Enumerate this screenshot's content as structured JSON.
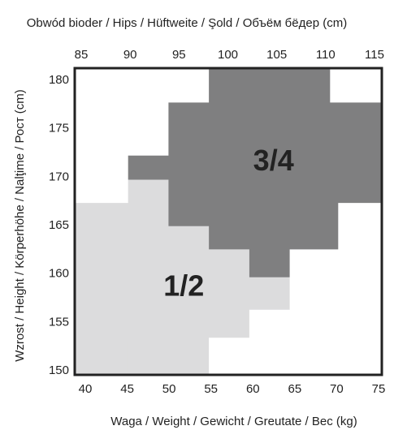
{
  "chart_data": {
    "type": "heatmap",
    "title_top": "Obwód bioder / Hips / Hüftweite / Şold / Объём бёдер (cm)",
    "xlabel": "Waga / Weight / Gewicht / Greutate / Вес (kg)",
    "ylabel": "Wzrost / Height / Körperhöhe / Nalţime / Рост (cm)",
    "x_ticks": [
      "40",
      "45",
      "50",
      "55",
      "60",
      "65",
      "70",
      "75"
    ],
    "x_ticks_top": [
      "85",
      "90",
      "95",
      "100",
      "105",
      "110",
      "115"
    ],
    "y_ticks": [
      "180",
      "175",
      "170",
      "165",
      "160",
      "155",
      "150"
    ],
    "xlim": [
      38,
      76
    ],
    "ylim": [
      149,
      182
    ],
    "colors": {
      "size_1_2": "#dcdcdd",
      "size_3_4": "#7f7f80",
      "frame": "#222222"
    },
    "regions": [
      {
        "label": "1/2",
        "color": "size_1_2",
        "label_at": [
          51.5,
          157.5
        ],
        "polygon": [
          [
            38,
            149
          ],
          [
            38,
            167.5
          ],
          [
            44.6,
            167.5
          ],
          [
            44.6,
            170
          ],
          [
            49.6,
            170
          ],
          [
            49.6,
            165
          ],
          [
            54.6,
            165
          ],
          [
            54.6,
            162.5
          ],
          [
            59.6,
            162.5
          ],
          [
            59.6,
            159.5
          ],
          [
            64.6,
            159.5
          ],
          [
            64.6,
            156
          ],
          [
            59.6,
            156
          ],
          [
            59.6,
            153
          ],
          [
            54.6,
            153
          ],
          [
            54.6,
            149
          ]
        ]
      },
      {
        "label": "3/4",
        "color": "size_3_4",
        "label_at": [
          62.6,
          171
        ],
        "polygon": [
          [
            44.6,
            170
          ],
          [
            44.6,
            172.6
          ],
          [
            49.6,
            172.6
          ],
          [
            49.6,
            178.3
          ],
          [
            54.6,
            178.3
          ],
          [
            54.6,
            182
          ],
          [
            69.6,
            182
          ],
          [
            69.6,
            178.3
          ],
          [
            76,
            178.3
          ],
          [
            76,
            167.5
          ],
          [
            70.6,
            167.5
          ],
          [
            70.6,
            162.5
          ],
          [
            64.6,
            162.5
          ],
          [
            64.6,
            159.5
          ],
          [
            59.6,
            159.5
          ],
          [
            59.6,
            162.5
          ],
          [
            54.6,
            162.5
          ],
          [
            54.6,
            165
          ],
          [
            49.6,
            165
          ],
          [
            49.6,
            170
          ]
        ]
      },
      {
        "label": "",
        "color": "size_1_2",
        "label_at": null,
        "polygon": [
          [
            38,
            149
          ],
          [
            38,
            152.5
          ],
          [
            44.6,
            152.5
          ],
          [
            44.6,
            149
          ]
        ]
      }
    ]
  }
}
